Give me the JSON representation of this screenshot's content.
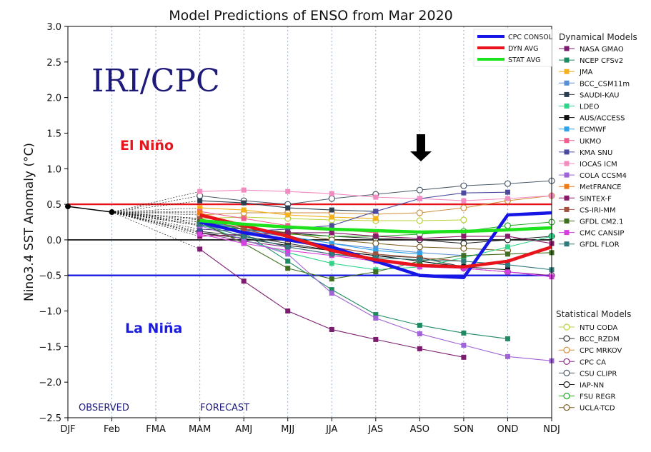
{
  "chart_data": {
    "type": "line",
    "title": "Model Predictions of ENSO from Mar 2020",
    "ylabel": "Nino3.4 SST Anomaly (°C)",
    "xlabel": "",
    "categories": [
      "DJF",
      "Feb",
      "FMA",
      "MAM",
      "AMJ",
      "MJJ",
      "JJA",
      "JAS",
      "ASO",
      "SON",
      "OND",
      "NDJ"
    ],
    "ylim": [
      -2.5,
      3.0
    ],
    "yticks": [
      -2.5,
      -2.0,
      -1.5,
      -1.0,
      -0.5,
      0.0,
      0.5,
      1.0,
      1.5,
      2.0,
      2.5,
      3.0
    ],
    "ytick_labels": [
      "−2.5",
      "−2.0",
      "−1.5",
      "−1.0",
      "−0.5",
      "0.0",
      "0.5",
      "1.0",
      "1.5",
      "2.0",
      "2.5",
      "3.0"
    ],
    "grid": "vertical",
    "legend": "right",
    "thresholds": [
      {
        "value": 0.5,
        "color": "#e8141c"
      },
      {
        "value": 0.0,
        "color": "#000000"
      },
      {
        "value": -0.5,
        "color": "#1a1ae0"
      }
    ],
    "annotations": {
      "logo": "IRI/CPC",
      "el_nino": "El Niño",
      "la_nina": "La Niña",
      "observed": "OBSERVED",
      "forecast": "FORECAST"
    },
    "observed": {
      "x": [
        0,
        1
      ],
      "values": [
        0.47,
        0.39
      ]
    },
    "summary_series": [
      {
        "name": "CPC CONSOL",
        "color": "#1515e6",
        "values": [
          null,
          null,
          null,
          0.25,
          0.1,
          0.0,
          -0.1,
          -0.3,
          -0.5,
          -0.53,
          0.35,
          0.38
        ]
      },
      {
        "name": "DYN AVG",
        "color": "#e8141c",
        "values": [
          null,
          null,
          null,
          0.35,
          0.2,
          0.05,
          -0.15,
          -0.28,
          -0.36,
          -0.38,
          -0.3,
          -0.1
        ]
      },
      {
        "name": "STAT AVG",
        "color": "#1de31d",
        "values": [
          null,
          null,
          null,
          0.27,
          0.22,
          0.18,
          0.15,
          0.13,
          0.11,
          0.12,
          0.14,
          0.17
        ]
      }
    ],
    "dynamical_title": "Dynamical Models",
    "dynamical_models": [
      {
        "name": "NASA GMAO",
        "color": "#7b1c6e",
        "values": [
          null,
          null,
          null,
          -0.13,
          -0.58,
          -1.0,
          -1.26,
          -1.4,
          -1.53,
          -1.65,
          null,
          null
        ]
      },
      {
        "name": "NCEP CFSv2",
        "color": "#1e8a62",
        "values": [
          null,
          null,
          null,
          0.3,
          0.1,
          -0.3,
          -0.7,
          -1.05,
          -1.2,
          -1.31,
          -1.39,
          null
        ]
      },
      {
        "name": "JMA",
        "color": "#f4b11c",
        "values": [
          null,
          null,
          null,
          0.45,
          0.42,
          0.35,
          0.32,
          0.3,
          null,
          null,
          null,
          null
        ]
      },
      {
        "name": "BCC_CSM11m",
        "color": "#5a8fd6",
        "values": [
          null,
          null,
          null,
          0.2,
          0.12,
          0.05,
          -0.05,
          -0.12,
          -0.18,
          -0.22,
          null,
          null
        ]
      },
      {
        "name": "SAUDI-KAU",
        "color": "#2c3e50",
        "values": [
          null,
          null,
          null,
          0.55,
          0.52,
          0.45,
          0.42,
          0.4,
          null,
          null,
          null,
          null
        ]
      },
      {
        "name": "LDEO",
        "color": "#2fd58b",
        "values": [
          null,
          null,
          null,
          0.22,
          0.0,
          -0.18,
          -0.33,
          -0.42,
          -0.38,
          -0.25,
          -0.1,
          0.05
        ]
      },
      {
        "name": "AUS/ACCESS",
        "color": "#111111",
        "values": [
          null,
          null,
          null,
          0.1,
          0.02,
          -0.08,
          -0.15,
          -0.22,
          -0.3,
          -0.38,
          -0.42,
          null
        ]
      },
      {
        "name": "ECMWF",
        "color": "#2ea3e8",
        "values": [
          null,
          null,
          null,
          0.28,
          0.15,
          0.05,
          -0.05,
          -0.15,
          -0.2,
          null,
          null,
          null
        ]
      },
      {
        "name": "UKMO",
        "color": "#ee5d8d",
        "values": [
          null,
          null,
          null,
          0.4,
          0.3,
          0.2,
          0.15,
          0.1,
          null,
          null,
          null,
          null
        ]
      },
      {
        "name": "KMA SNU",
        "color": "#4b4aa0",
        "values": [
          null,
          null,
          null,
          0.15,
          0.12,
          0.15,
          0.2,
          0.4,
          0.58,
          0.66,
          0.67,
          null
        ]
      },
      {
        "name": "IOCAS ICM",
        "color": "#f28cc0",
        "values": [
          null,
          null,
          null,
          0.68,
          0.7,
          0.68,
          0.65,
          0.6,
          0.58,
          0.55,
          0.58,
          0.62
        ]
      },
      {
        "name": "COLA CCSM4",
        "color": "#a063d8",
        "values": [
          null,
          null,
          null,
          0.2,
          0.0,
          -0.2,
          -0.75,
          -1.1,
          -1.32,
          -1.48,
          -1.64,
          -1.7
        ]
      },
      {
        "name": "MetFRANCE",
        "color": "#f07c18",
        "values": [
          null,
          null,
          null,
          0.38,
          0.2,
          0.05,
          -0.1,
          -0.2,
          null,
          null,
          null,
          null
        ]
      },
      {
        "name": "SINTEX-F",
        "color": "#8a1a6a",
        "values": [
          null,
          null,
          null,
          0.05,
          0.08,
          0.1,
          0.1,
          0.05,
          0.02,
          0.05,
          0.05,
          -0.05
        ]
      },
      {
        "name": "CS-IRI-MM",
        "color": "#a0523d",
        "values": [
          null,
          null,
          null,
          0.3,
          0.15,
          0.0,
          -0.1,
          -0.2,
          -0.25,
          -0.3,
          null,
          null
        ]
      },
      {
        "name": "GFDL CM2.1",
        "color": "#3e6e1e",
        "values": [
          null,
          null,
          null,
          0.25,
          -0.05,
          -0.4,
          -0.55,
          -0.45,
          -0.3,
          -0.22,
          -0.2,
          -0.18
        ]
      },
      {
        "name": "CMC CANSIP",
        "color": "#d63ee0",
        "values": [
          null,
          null,
          null,
          0.08,
          -0.05,
          -0.15,
          -0.22,
          -0.3,
          -0.38,
          -0.4,
          -0.45,
          -0.52
        ]
      },
      {
        "name": "GFDL FLOR",
        "color": "#2f7a7a",
        "values": [
          null,
          null,
          null,
          0.22,
          0.05,
          -0.1,
          -0.2,
          -0.25,
          -0.28,
          -0.3,
          -0.35,
          -0.42
        ]
      }
    ],
    "statistical_title": "Statistical Models",
    "statistical_models": [
      {
        "name": "NTU CODA",
        "color": "#b8d13a",
        "values": [
          null,
          null,
          null,
          0.3,
          0.32,
          0.3,
          0.28,
          0.27,
          0.27,
          0.28,
          null,
          null
        ]
      },
      {
        "name": "BCC_RZDM",
        "color": "#333333",
        "values": [
          null,
          null,
          null,
          0.12,
          0.05,
          -0.05,
          -0.15,
          -0.22,
          -0.25,
          -0.38,
          null,
          null
        ]
      },
      {
        "name": "CPC MRKOV",
        "color": "#d08d3a",
        "values": [
          null,
          null,
          null,
          0.35,
          0.38,
          0.38,
          0.38,
          0.36,
          0.38,
          0.45,
          0.55,
          0.62
        ]
      },
      {
        "name": "CPC CA",
        "color": "#8a2a8a",
        "values": [
          null,
          null,
          null,
          0.1,
          -0.02,
          -0.1,
          -0.2,
          -0.28,
          -0.35,
          -0.4,
          -0.45,
          -0.5
        ]
      },
      {
        "name": "CSU CLIPR",
        "color": "#4a5a6a",
        "values": [
          null,
          null,
          null,
          0.62,
          0.55,
          0.5,
          0.58,
          0.64,
          0.7,
          0.76,
          0.79,
          0.83
        ]
      },
      {
        "name": "IAP-NN",
        "color": "#222222",
        "values": [
          null,
          null,
          null,
          0.2,
          0.15,
          0.1,
          0.05,
          0.02,
          0.0,
          -0.05,
          0.0,
          0.05
        ]
      },
      {
        "name": "FSU REGR",
        "color": "#22aa22",
        "values": [
          null,
          null,
          null,
          0.25,
          0.15,
          0.08,
          0.05,
          0.05,
          0.08,
          0.12,
          0.2,
          0.25
        ]
      },
      {
        "name": "UCLA-TCD",
        "color": "#7a5a1a",
        "values": [
          null,
          null,
          null,
          0.25,
          0.18,
          0.1,
          0.0,
          -0.05,
          -0.1,
          -0.12,
          -0.15,
          null
        ]
      }
    ]
  }
}
